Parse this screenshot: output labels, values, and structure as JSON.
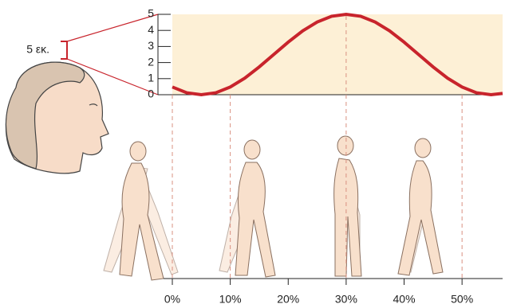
{
  "chart_data": {
    "type": "line",
    "annotation": "5 εκ.",
    "x": [
      0,
      2.5,
      5,
      7.5,
      10,
      12.5,
      15,
      17.5,
      20,
      22.5,
      25,
      27.5,
      30,
      32.5,
      35,
      37.5,
      40,
      42.5,
      45,
      47.5,
      50,
      52.5,
      55,
      57
    ],
    "series": [
      {
        "color": "#c8242c",
        "values": [
          0.48,
          0.12,
          0,
          0.12,
          0.48,
          1.03,
          1.73,
          2.5,
          3.27,
          3.97,
          4.52,
          4.88,
          5,
          4.88,
          4.52,
          3.97,
          3.27,
          2.5,
          1.73,
          1.03,
          0.48,
          0.12,
          0,
          0.08
        ]
      }
    ],
    "xlim": [
      0,
      57
    ],
    "ylim": [
      0,
      5
    ],
    "xticks": [
      {
        "value": 0,
        "label": "0%"
      },
      {
        "value": 10,
        "label": "10%"
      },
      {
        "value": 20,
        "label": "20%"
      },
      {
        "value": 30,
        "label": "30%"
      },
      {
        "value": 40,
        "label": "40%"
      },
      {
        "value": 50,
        "label": "50%"
      }
    ],
    "yticks": [
      0,
      1,
      2,
      3,
      4,
      5
    ]
  }
}
